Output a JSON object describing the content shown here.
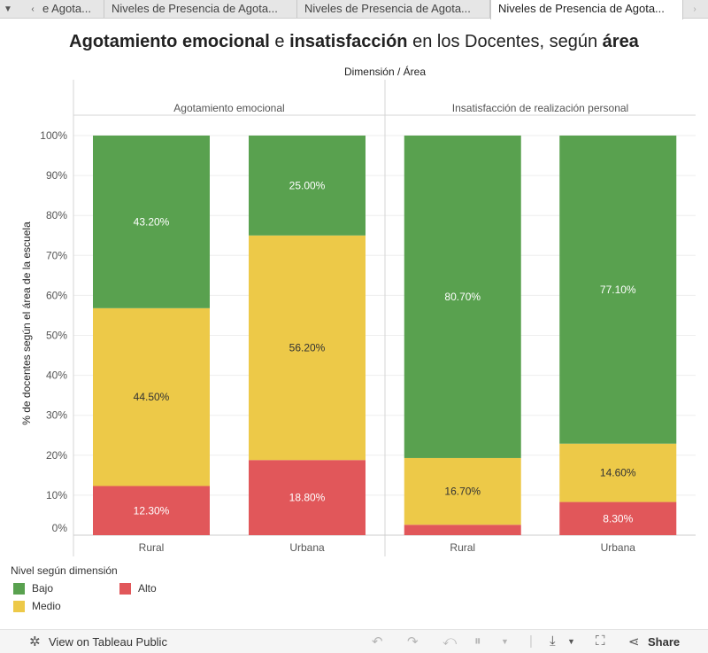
{
  "tabs": {
    "items": [
      {
        "label": "e Agota..."
      },
      {
        "label": "Niveles de Presencia de Agota..."
      },
      {
        "label": "Niveles de Presencia de Agota..."
      },
      {
        "label": "Niveles de Presencia de Agota..."
      }
    ],
    "active_index": 3
  },
  "title": {
    "part1": "Agotamiento emocional",
    "part2": " e ",
    "part3": "insatisfacción",
    "part4": " en los Docentes, según ",
    "part5": "área"
  },
  "chart_data": {
    "type": "bar",
    "stacked": true,
    "column_header": "Dimensión  /  Área",
    "ylabel": "% de docentes según el área de la escuela",
    "ylim": [
      0,
      100
    ],
    "yticks": [
      "0%",
      "10%",
      "20%",
      "30%",
      "40%",
      "50%",
      "60%",
      "70%",
      "80%",
      "90%",
      "100%"
    ],
    "grid": true,
    "panels": [
      {
        "name": "Agotamiento emocional",
        "categories": [
          "Rural",
          "Urbana"
        ],
        "series": [
          {
            "name": "Alto",
            "values": [
              12.3,
              18.8
            ],
            "labels": [
              "12.30%",
              "18.80%"
            ]
          },
          {
            "name": "Medio",
            "values": [
              44.5,
              56.2
            ],
            "labels": [
              "44.50%",
              "56.20%"
            ]
          },
          {
            "name": "Bajo",
            "values": [
              43.2,
              25.0
            ],
            "labels": [
              "43.20%",
              "25.00%"
            ]
          }
        ]
      },
      {
        "name": "Insatisfacción de realización personal",
        "categories": [
          "Rural",
          "Urbana"
        ],
        "series": [
          {
            "name": "Alto",
            "values": [
              2.6,
              8.3
            ],
            "labels": [
              "",
              "8.30%"
            ]
          },
          {
            "name": "Medio",
            "values": [
              16.7,
              14.6
            ],
            "labels": [
              "16.70%",
              "14.60%"
            ]
          },
          {
            "name": "Bajo",
            "values": [
              80.7,
              77.1
            ],
            "labels": [
              "80.70%",
              "77.10%"
            ]
          }
        ]
      }
    ],
    "colors": {
      "Alto": "#e1575a",
      "Medio": "#edc948",
      "Bajo": "#59a14f"
    },
    "label_colors": {
      "Alto": "#ffffff",
      "Medio": "#333333",
      "Bajo": "#ffffff"
    }
  },
  "legend": {
    "title": "Nivel según dimensión",
    "items": [
      {
        "name": "Bajo",
        "color": "#59a14f"
      },
      {
        "name": "Alto",
        "color": "#e1575a"
      },
      {
        "name": "Medio",
        "color": "#edc948"
      }
    ]
  },
  "footer": {
    "view_label": "View on Tableau Public",
    "share_label": "Share"
  }
}
